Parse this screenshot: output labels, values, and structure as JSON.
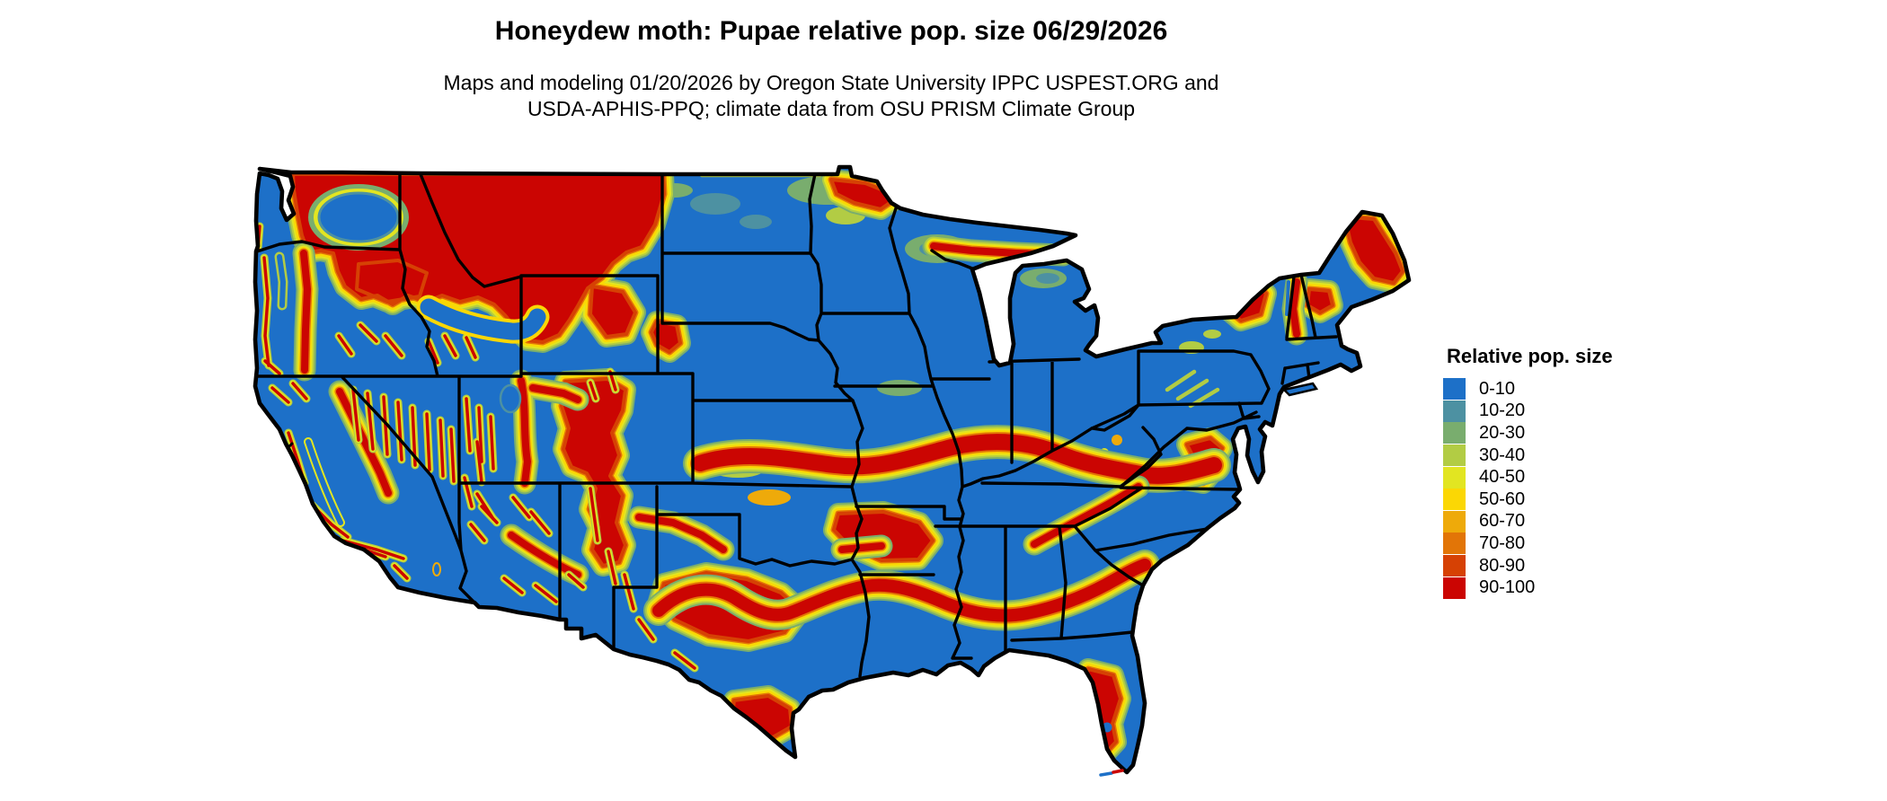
{
  "header": {
    "title": "Honeydew moth: Pupae relative pop. size 06/29/2026",
    "subtitle_line1": "Maps and modeling 01/20/2026 by Oregon State University IPPC USPEST.ORG and",
    "subtitle_line2": "USDA-APHIS-PPQ; climate data from OSU PRISM Climate Group"
  },
  "legend": {
    "title": "Relative pop. size",
    "items": [
      {
        "label": "0-10",
        "color": "#1d70c8"
      },
      {
        "label": "10-20",
        "color": "#4d91a2"
      },
      {
        "label": "20-30",
        "color": "#79ad6e"
      },
      {
        "label": "30-40",
        "color": "#b2cc44"
      },
      {
        "label": "40-50",
        "color": "#e2e521"
      },
      {
        "label": "50-60",
        "color": "#fbd704"
      },
      {
        "label": "60-70",
        "color": "#eeaa0a"
      },
      {
        "label": "70-80",
        "color": "#e27507"
      },
      {
        "label": "80-90",
        "color": "#d64104"
      },
      {
        "label": "90-100",
        "color": "#cb0502"
      }
    ]
  },
  "map": {
    "base_fill_color": "#1d70c8",
    "state_border_color": "#000000",
    "water_color": "#ffffff"
  }
}
